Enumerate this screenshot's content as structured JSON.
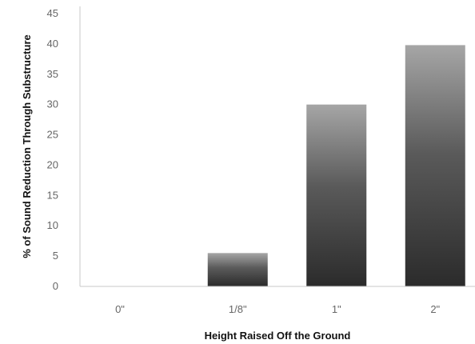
{
  "chart_data": {
    "type": "bar",
    "categories": [
      "0\"",
      "1/8\"",
      "1\"",
      "2\""
    ],
    "values": [
      0,
      5.5,
      30,
      39.8
    ],
    "xlabel": "Height Raised Off the Ground",
    "ylabel": "% of Sound Reduction Through Substructure",
    "ylim": [
      0,
      45
    ],
    "yticks": [
      0,
      5,
      10,
      15,
      20,
      25,
      30,
      35,
      40,
      45
    ],
    "grid": false,
    "bar_gradient": {
      "top": "#a6a6a6",
      "mid": "#5a5a5a",
      "bottom": "#2b2b2b"
    },
    "axis_color": "#c8c8c8"
  }
}
